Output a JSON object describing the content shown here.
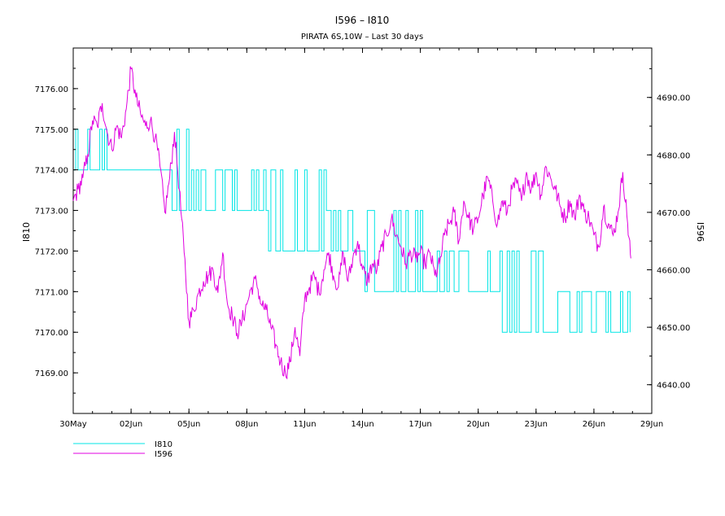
{
  "chart_data": {
    "type": "line",
    "title": "I596 – I810",
    "subtitle": "PIRATA 6S,10W – Last 30 days",
    "xlabel": "",
    "y_left_label": "I810",
    "y_right_label": "I596",
    "x_range": [
      "2014-05-30",
      "2014-06-29"
    ],
    "x_ticks": [
      {
        "date": "2014-05-30",
        "label": "30May"
      },
      {
        "date": "2014-06-02",
        "label": "02Jun"
      },
      {
        "date": "2014-06-05",
        "label": "05Jun"
      },
      {
        "date": "2014-06-08",
        "label": "08Jun"
      },
      {
        "date": "2014-06-11",
        "label": "11Jun"
      },
      {
        "date": "2014-06-14",
        "label": "14Jun"
      },
      {
        "date": "2014-06-17",
        "label": "17Jun"
      },
      {
        "date": "2014-06-20",
        "label": "20Jun"
      },
      {
        "date": "2014-06-23",
        "label": "23Jun"
      },
      {
        "date": "2014-06-26",
        "label": "26Jun"
      },
      {
        "date": "2014-06-29",
        "label": "29Jun"
      }
    ],
    "y_left_range": [
      7168.0,
      7177.0
    ],
    "y_left_ticks": [
      "7169.00",
      "7170.00",
      "7171.00",
      "7172.00",
      "7173.00",
      "7174.00",
      "7175.00",
      "7176.00"
    ],
    "y_right_range": [
      4635.0,
      4698.6
    ],
    "y_right_ticks": [
      "4640.00",
      "4650.00",
      "4660.00",
      "4670.00",
      "4680.00",
      "4690.00"
    ],
    "grid": false,
    "legend_position": "bottom-left",
    "series": [
      {
        "name": "I810",
        "axis": "left",
        "color": "#00e5e5",
        "style": "step",
        "points": [
          [
            "2014-05-30T00:00",
            7174.5
          ],
          [
            "2014-05-30T12:00",
            7174.2
          ],
          [
            "2014-05-31T00:00",
            7174.5
          ],
          [
            "2014-05-31T12:00",
            7174.3
          ],
          [
            "2014-06-01T00:00",
            7174.0
          ],
          [
            "2014-06-01T12:00",
            7174.0
          ],
          [
            "2014-06-02T00:00",
            7174.2
          ],
          [
            "2014-06-02T12:00",
            7174.3
          ],
          [
            "2014-06-03T00:00",
            7174.0
          ],
          [
            "2014-06-03T12:00",
            7174.1
          ],
          [
            "2014-06-04T00:00",
            7174.0
          ],
          [
            "2014-06-04T12:00",
            7173.6
          ],
          [
            "2014-06-05T00:00",
            7173.6
          ],
          [
            "2014-06-05T12:00",
            7173.4
          ],
          [
            "2014-06-06T00:00",
            7173.4
          ],
          [
            "2014-06-06T12:00",
            7173.4
          ],
          [
            "2014-06-07T00:00",
            7173.4
          ],
          [
            "2014-06-07T12:00",
            7173.4
          ],
          [
            "2014-06-08T00:00",
            7173.4
          ],
          [
            "2014-06-08T12:00",
            7173.5
          ],
          [
            "2014-06-09T00:00",
            7173.4
          ],
          [
            "2014-06-09T12:00",
            7173.0
          ],
          [
            "2014-06-10T00:00",
            7172.7
          ],
          [
            "2014-06-10T12:00",
            7172.7
          ],
          [
            "2014-06-11T00:00",
            7172.8
          ],
          [
            "2014-06-11T12:00",
            7172.6
          ],
          [
            "2014-06-12T00:00",
            7172.5
          ],
          [
            "2014-06-12T12:00",
            7172.5
          ],
          [
            "2014-06-13T00:00",
            7172.4
          ],
          [
            "2014-06-13T12:00",
            7172.3
          ],
          [
            "2014-06-14T00:00",
            7172.3
          ],
          [
            "2014-06-14T12:00",
            7172.0
          ],
          [
            "2014-06-15T00:00",
            7171.8
          ],
          [
            "2014-06-15T12:00",
            7171.7
          ],
          [
            "2014-06-16T00:00",
            7171.7
          ],
          [
            "2014-06-16T12:00",
            7171.6
          ],
          [
            "2014-06-17T00:00",
            7171.5
          ],
          [
            "2014-06-17T12:00",
            7171.5
          ],
          [
            "2014-06-18T00:00",
            7171.4
          ],
          [
            "2014-06-18T12:00",
            7171.4
          ],
          [
            "2014-06-19T00:00",
            7171.3
          ],
          [
            "2014-06-19T12:00",
            7171.2
          ],
          [
            "2014-06-20T00:00",
            7171.2
          ],
          [
            "2014-06-20T12:00",
            7171.1
          ],
          [
            "2014-06-21T00:00",
            7171.0
          ],
          [
            "2014-06-21T12:00",
            7171.0
          ],
          [
            "2014-06-22T00:00",
            7170.8
          ],
          [
            "2014-06-22T12:00",
            7170.8
          ],
          [
            "2014-06-23T00:00",
            7170.6
          ],
          [
            "2014-06-23T12:00",
            7170.6
          ],
          [
            "2014-06-24T00:00",
            7170.6
          ],
          [
            "2014-06-24T12:00",
            7170.6
          ],
          [
            "2014-06-25T00:00",
            7170.5
          ],
          [
            "2014-06-25T12:00",
            7170.5
          ],
          [
            "2014-06-26T00:00",
            7170.5
          ],
          [
            "2014-06-26T12:00",
            7170.5
          ],
          [
            "2014-06-27T00:00",
            7170.5
          ],
          [
            "2014-06-27T12:00",
            7170.5
          ],
          [
            "2014-06-27T22:00",
            7170.5
          ]
        ],
        "envelope": [
          [
            "2014-05-30",
            7174.0,
            7175.0
          ],
          [
            "2014-06-04",
            7173.0,
            7175.0
          ],
          [
            "2014-06-05",
            7173.0,
            7174.0
          ],
          [
            "2014-06-09",
            7172.0,
            7174.0
          ],
          [
            "2014-06-12",
            7172.0,
            7173.0
          ],
          [
            "2014-06-14",
            7171.0,
            7173.0
          ],
          [
            "2014-06-17",
            7171.0,
            7172.0
          ],
          [
            "2014-06-21",
            7170.0,
            7172.0
          ],
          [
            "2014-06-24",
            7170.0,
            7171.0
          ],
          [
            "2014-06-27T22:00",
            7170.0,
            7171.0
          ]
        ]
      },
      {
        "name": "I596",
        "axis": "right",
        "color": "#e000e0",
        "style": "line",
        "points": [
          [
            "2014-05-30T00:00",
            4672
          ],
          [
            "2014-05-30T06:00",
            4674
          ],
          [
            "2014-05-30T12:00",
            4676
          ],
          [
            "2014-05-30T18:00",
            4680
          ],
          [
            "2014-05-31T00:00",
            4686
          ],
          [
            "2014-05-31T06:00",
            4685
          ],
          [
            "2014-05-31T12:00",
            4689
          ],
          [
            "2014-05-31T18:00",
            4684
          ],
          [
            "2014-06-01T00:00",
            4681
          ],
          [
            "2014-06-01T06:00",
            4685
          ],
          [
            "2014-06-01T12:00",
            4683
          ],
          [
            "2014-06-01T18:00",
            4688
          ],
          [
            "2014-06-02T00:00",
            4695
          ],
          [
            "2014-06-02T06:00",
            4690
          ],
          [
            "2014-06-02T12:00",
            4687
          ],
          [
            "2014-06-02T18:00",
            4685
          ],
          [
            "2014-06-03T00:00",
            4686
          ],
          [
            "2014-06-03T06:00",
            4683
          ],
          [
            "2014-06-03T12:00",
            4678
          ],
          [
            "2014-06-03T18:00",
            4670
          ],
          [
            "2014-06-04T00:00",
            4676
          ],
          [
            "2014-06-04T06:00",
            4684
          ],
          [
            "2014-06-04T12:00",
            4674
          ],
          [
            "2014-06-04T18:00",
            4663
          ],
          [
            "2014-06-05T00:00",
            4651
          ],
          [
            "2014-06-05T06:00",
            4653
          ],
          [
            "2014-06-05T12:00",
            4656
          ],
          [
            "2014-06-05T18:00",
            4658
          ],
          [
            "2014-06-06T00:00",
            4659
          ],
          [
            "2014-06-06T06:00",
            4660
          ],
          [
            "2014-06-06T12:00",
            4656
          ],
          [
            "2014-06-06T18:00",
            4663
          ],
          [
            "2014-06-07T00:00",
            4654
          ],
          [
            "2014-06-07T06:00",
            4652
          ],
          [
            "2014-06-07T12:00",
            4649
          ],
          [
            "2014-06-07T18:00",
            4651
          ],
          [
            "2014-06-08T00:00",
            4654
          ],
          [
            "2014-06-08T06:00",
            4657
          ],
          [
            "2014-06-08T12:00",
            4658
          ],
          [
            "2014-06-08T18:00",
            4654
          ],
          [
            "2014-06-09T00:00",
            4653
          ],
          [
            "2014-06-09T06:00",
            4650
          ],
          [
            "2014-06-09T12:00",
            4647
          ],
          [
            "2014-06-09T18:00",
            4644
          ],
          [
            "2014-06-10T00:00",
            4642
          ],
          [
            "2014-06-10T06:00",
            4644
          ],
          [
            "2014-06-10T12:00",
            4650
          ],
          [
            "2014-06-10T18:00",
            4645
          ],
          [
            "2014-06-11T00:00",
            4655
          ],
          [
            "2014-06-11T06:00",
            4657
          ],
          [
            "2014-06-11T12:00",
            4659
          ],
          [
            "2014-06-11T18:00",
            4656
          ],
          [
            "2014-06-12T00:00",
            4660
          ],
          [
            "2014-06-12T06:00",
            4663
          ],
          [
            "2014-06-12T12:00",
            4659
          ],
          [
            "2014-06-12T18:00",
            4657
          ],
          [
            "2014-06-13T00:00",
            4663
          ],
          [
            "2014-06-13T06:00",
            4658
          ],
          [
            "2014-06-13T12:00",
            4662
          ],
          [
            "2014-06-13T18:00",
            4665
          ],
          [
            "2014-06-14T00:00",
            4660
          ],
          [
            "2014-06-14T06:00",
            4658
          ],
          [
            "2014-06-14T12:00",
            4661
          ],
          [
            "2014-06-14T18:00",
            4660
          ],
          [
            "2014-06-15T00:00",
            4664
          ],
          [
            "2014-06-15T06:00",
            4666
          ],
          [
            "2014-06-15T12:00",
            4669
          ],
          [
            "2014-06-15T18:00",
            4666
          ],
          [
            "2014-06-16T00:00",
            4664
          ],
          [
            "2014-06-16T06:00",
            4661
          ],
          [
            "2014-06-16T12:00",
            4663
          ],
          [
            "2014-06-16T18:00",
            4662
          ],
          [
            "2014-06-17T00:00",
            4663
          ],
          [
            "2014-06-17T06:00",
            4661
          ],
          [
            "2014-06-17T12:00",
            4663
          ],
          [
            "2014-06-17T18:00",
            4659
          ],
          [
            "2014-06-18T00:00",
            4661
          ],
          [
            "2014-06-18T06:00",
            4666
          ],
          [
            "2014-06-18T12:00",
            4668
          ],
          [
            "2014-06-18T18:00",
            4670
          ],
          [
            "2014-06-19T00:00",
            4665
          ],
          [
            "2014-06-19T06:00",
            4672
          ],
          [
            "2014-06-19T12:00",
            4669
          ],
          [
            "2014-06-19T18:00",
            4667
          ],
          [
            "2014-06-20T00:00",
            4669
          ],
          [
            "2014-06-20T06:00",
            4673
          ],
          [
            "2014-06-20T12:00",
            4676
          ],
          [
            "2014-06-20T18:00",
            4672
          ],
          [
            "2014-06-21T00:00",
            4668
          ],
          [
            "2014-06-21T06:00",
            4672
          ],
          [
            "2014-06-21T12:00",
            4670
          ],
          [
            "2014-06-21T18:00",
            4674
          ],
          [
            "2014-06-22T00:00",
            4675
          ],
          [
            "2014-06-22T06:00",
            4672
          ],
          [
            "2014-06-22T12:00",
            4677
          ],
          [
            "2014-06-22T18:00",
            4674
          ],
          [
            "2014-06-23T00:00",
            4677
          ],
          [
            "2014-06-23T06:00",
            4673
          ],
          [
            "2014-06-23T12:00",
            4678
          ],
          [
            "2014-06-23T18:00",
            4676
          ],
          [
            "2014-06-24T00:00",
            4674
          ],
          [
            "2014-06-24T06:00",
            4671
          ],
          [
            "2014-06-24T12:00",
            4669
          ],
          [
            "2014-06-24T18:00",
            4672
          ],
          [
            "2014-06-25T00:00",
            4669
          ],
          [
            "2014-06-25T06:00",
            4673
          ],
          [
            "2014-06-25T12:00",
            4670
          ],
          [
            "2014-06-25T18:00",
            4669
          ],
          [
            "2014-06-26T00:00",
            4666
          ],
          [
            "2014-06-26T06:00",
            4664
          ],
          [
            "2014-06-26T12:00",
            4671
          ],
          [
            "2014-06-26T18:00",
            4668
          ],
          [
            "2014-06-27T00:00",
            4666
          ],
          [
            "2014-06-27T06:00",
            4670
          ],
          [
            "2014-06-27T12:00",
            4677
          ],
          [
            "2014-06-27T18:00",
            4668
          ],
          [
            "2014-06-27T22:00",
            4662
          ]
        ]
      }
    ]
  }
}
